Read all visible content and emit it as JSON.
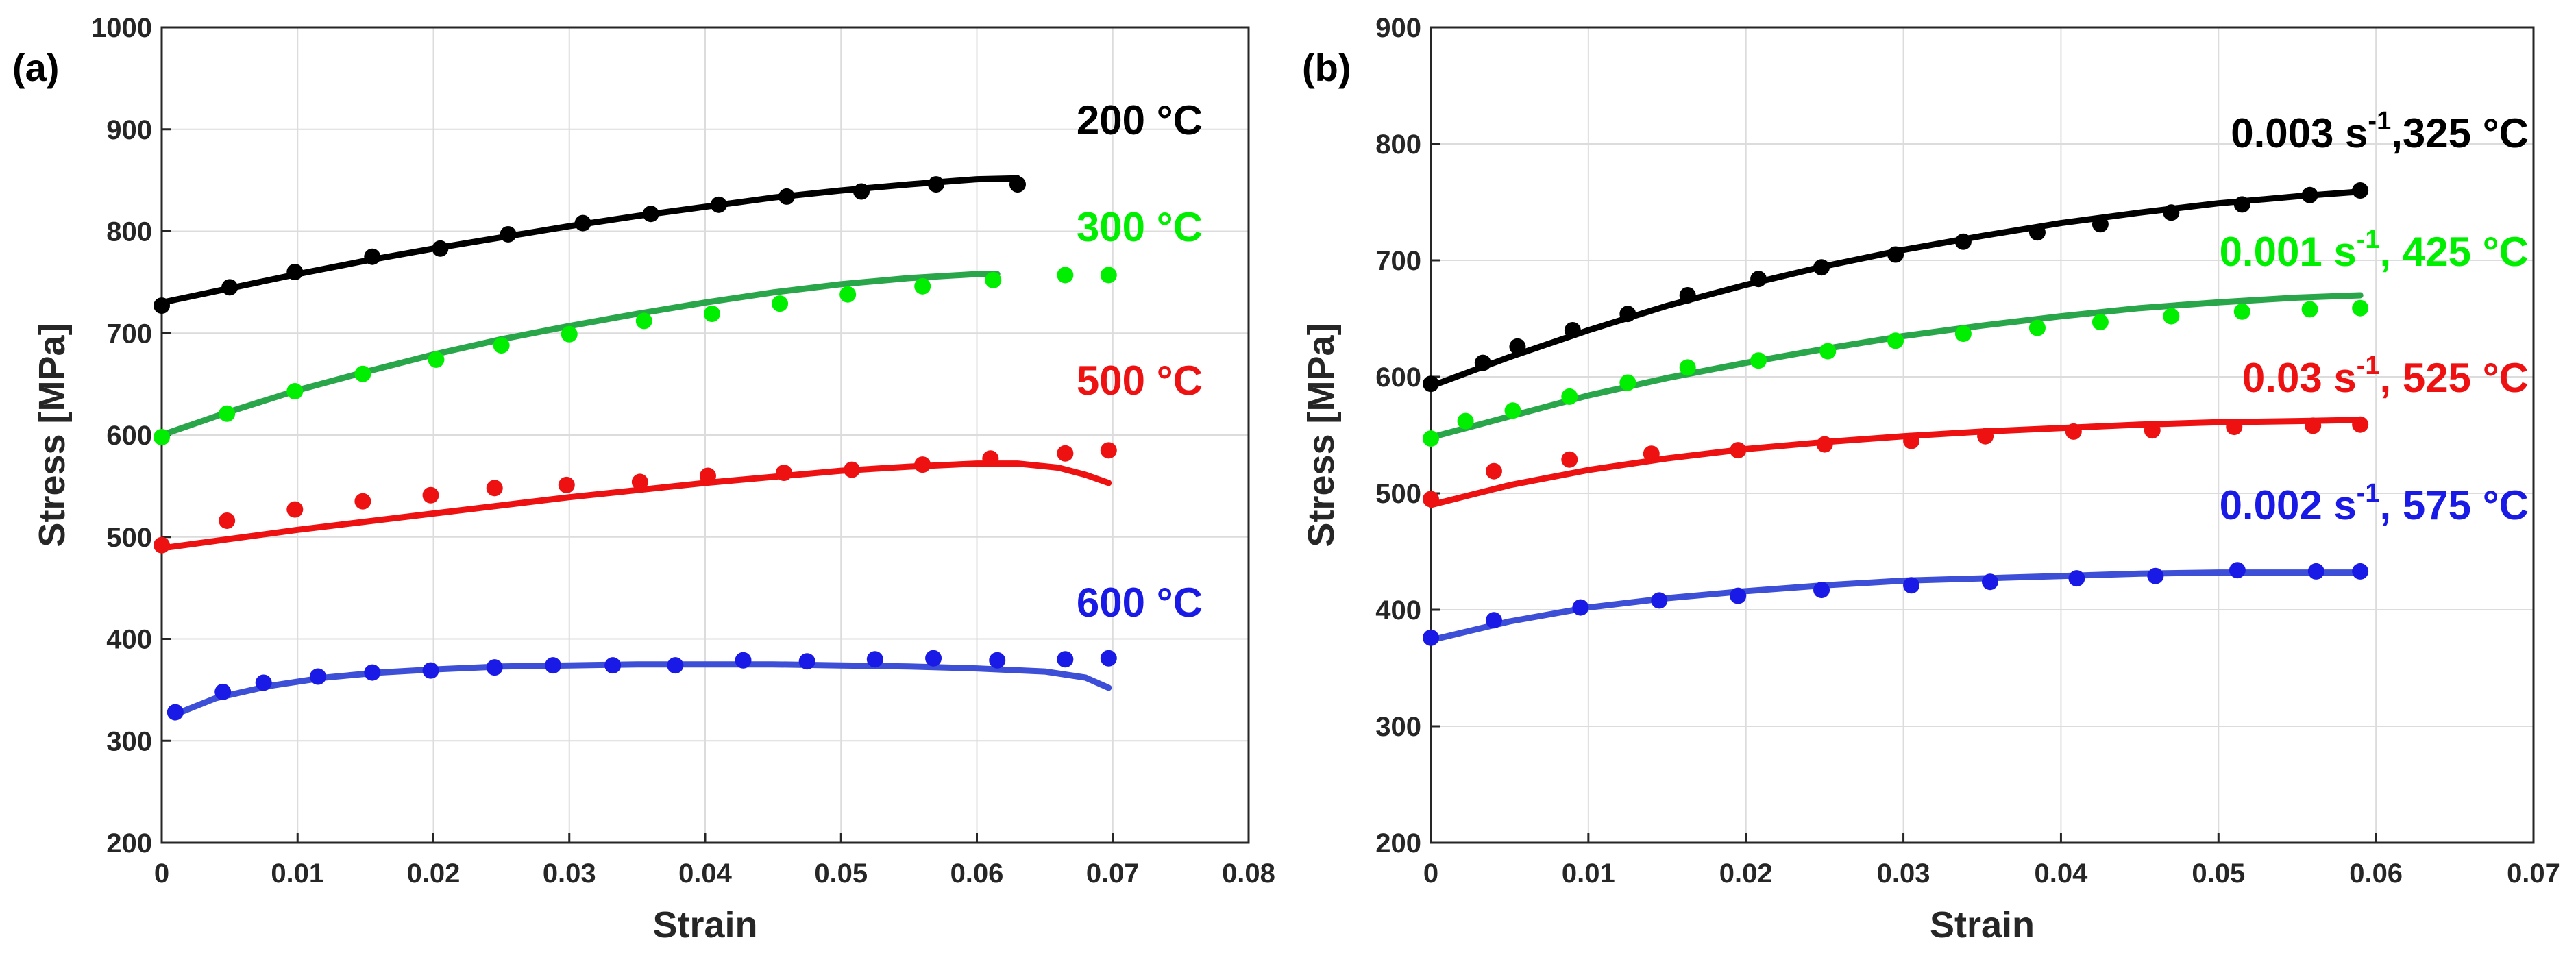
{
  "chart_data": [
    {
      "type": "line",
      "panel_label": "(a)",
      "xlabel": "Strain",
      "ylabel": "Stress [MPa]",
      "xlim": [
        0,
        0.08
      ],
      "ylim": [
        200,
        1000
      ],
      "xticks": [
        "0",
        "0.01",
        "0.02",
        "0.03",
        "0.04",
        "0.05",
        "0.06",
        "0.07",
        "0.08"
      ],
      "yticks": [
        "200",
        "300",
        "400",
        "500",
        "600",
        "700",
        "800",
        "900",
        "1000"
      ],
      "grid": true,
      "series": [
        {
          "name": "200 °C",
          "label": {
            "main": "200 °C",
            "sup": "",
            "rest": ""
          },
          "color": "#000000",
          "fit_color": "#000000",
          "fit": [
            [
              0,
              730
            ],
            [
              0.005,
              744
            ],
            [
              0.01,
              758
            ],
            [
              0.015,
              771
            ],
            [
              0.02,
              783
            ],
            [
              0.025,
              794
            ],
            [
              0.03,
              805
            ],
            [
              0.035,
              815
            ],
            [
              0.04,
              824
            ],
            [
              0.045,
              833
            ],
            [
              0.05,
              840
            ],
            [
              0.055,
              846
            ],
            [
              0.06,
              851
            ],
            [
              0.063,
              852
            ]
          ],
          "points": [
            [
              0,
              727
            ],
            [
              0.005,
              745
            ],
            [
              0.0098,
              760
            ],
            [
              0.0155,
              775
            ],
            [
              0.0205,
              783
            ],
            [
              0.0255,
              797
            ],
            [
              0.031,
              808
            ],
            [
              0.036,
              817
            ],
            [
              0.041,
              826
            ],
            [
              0.046,
              834
            ],
            [
              0.0515,
              839
            ],
            [
              0.057,
              846
            ],
            [
              0.063,
              846
            ]
          ]
        },
        {
          "name": "300 °C",
          "label": {
            "main": "300 °C",
            "sup": "",
            "rest": ""
          },
          "color": "#00ee00",
          "fit_color": "#2aa64a",
          "fit": [
            [
              0,
              600
            ],
            [
              0.005,
              623
            ],
            [
              0.01,
              644
            ],
            [
              0.015,
              662
            ],
            [
              0.02,
              679
            ],
            [
              0.025,
              694
            ],
            [
              0.03,
              707
            ],
            [
              0.035,
              719
            ],
            [
              0.04,
              730
            ],
            [
              0.045,
              740
            ],
            [
              0.05,
              748
            ],
            [
              0.055,
              754
            ],
            [
              0.06,
              758
            ],
            [
              0.0615,
              758
            ]
          ],
          "points": [
            [
              0,
              598
            ],
            [
              0.0048,
              621
            ],
            [
              0.0098,
              643
            ],
            [
              0.0148,
              660
            ],
            [
              0.0202,
              674
            ],
            [
              0.025,
              688
            ],
            [
              0.03,
              699
            ],
            [
              0.0355,
              712
            ],
            [
              0.0405,
              719
            ],
            [
              0.0455,
              729
            ],
            [
              0.0505,
              738
            ],
            [
              0.056,
              746
            ],
            [
              0.0612,
              752
            ],
            [
              0.0665,
              757
            ],
            [
              0.0697,
              757
            ]
          ]
        },
        {
          "name": "500 °C",
          "label": {
            "main": "500 °C",
            "sup": "",
            "rest": ""
          },
          "color": "#ee1111",
          "fit_color": "#ee1111",
          "fit": [
            [
              0,
              489
            ],
            [
              0.005,
              498
            ],
            [
              0.01,
              507
            ],
            [
              0.015,
              515
            ],
            [
              0.02,
              523
            ],
            [
              0.025,
              531
            ],
            [
              0.03,
              539
            ],
            [
              0.035,
              546
            ],
            [
              0.04,
              553
            ],
            [
              0.045,
              559
            ],
            [
              0.05,
              565
            ],
            [
              0.055,
              569
            ],
            [
              0.06,
              572
            ],
            [
              0.063,
              572
            ],
            [
              0.066,
              568
            ],
            [
              0.068,
              561
            ],
            [
              0.0697,
              553
            ]
          ],
          "points": [
            [
              0,
              492
            ],
            [
              0.0048,
              516
            ],
            [
              0.0098,
              527
            ],
            [
              0.0148,
              535
            ],
            [
              0.0198,
              541
            ],
            [
              0.0245,
              548
            ],
            [
              0.0298,
              551
            ],
            [
              0.0352,
              554
            ],
            [
              0.0402,
              560
            ],
            [
              0.0458,
              563
            ],
            [
              0.0508,
              566
            ],
            [
              0.056,
              571
            ],
            [
              0.061,
              577
            ],
            [
              0.0665,
              582
            ],
            [
              0.0697,
              585
            ]
          ]
        },
        {
          "name": "600 °C",
          "label": {
            "main": "600 °C",
            "sup": "",
            "rest": ""
          },
          "color": "#1a1ae6",
          "fit_color": "#3d4fd6",
          "fit": [
            [
              0.001,
              326
            ],
            [
              0.004,
              342
            ],
            [
              0.008,
              354
            ],
            [
              0.012,
              362
            ],
            [
              0.016,
              367
            ],
            [
              0.02,
              370
            ],
            [
              0.025,
              373
            ],
            [
              0.03,
              374
            ],
            [
              0.035,
              375
            ],
            [
              0.04,
              375
            ],
            [
              0.045,
              375
            ],
            [
              0.05,
              374
            ],
            [
              0.055,
              373
            ],
            [
              0.06,
              371
            ],
            [
              0.065,
              368
            ],
            [
              0.068,
              362
            ],
            [
              0.0697,
              352
            ]
          ],
          "points": [
            [
              0.001,
              328
            ],
            [
              0.0045,
              348
            ],
            [
              0.0075,
              357
            ],
            [
              0.0115,
              363
            ],
            [
              0.0155,
              367
            ],
            [
              0.0198,
              369
            ],
            [
              0.0245,
              372
            ],
            [
              0.0288,
              374
            ],
            [
              0.0332,
              374
            ],
            [
              0.0378,
              374
            ],
            [
              0.0428,
              379
            ],
            [
              0.0475,
              378
            ],
            [
              0.0525,
              380
            ],
            [
              0.0568,
              381
            ],
            [
              0.0615,
              379
            ],
            [
              0.0665,
              380
            ],
            [
              0.0697,
              381
            ]
          ]
        }
      ]
    },
    {
      "type": "line",
      "panel_label": "(b)",
      "xlabel": "Strain",
      "ylabel": "Stress [MPa]",
      "xlim": [
        0,
        0.07
      ],
      "ylim": [
        200,
        900
      ],
      "xticks": [
        "0",
        "0.01",
        "0.02",
        "0.03",
        "0.04",
        "0.05",
        "0.06",
        "0.07"
      ],
      "yticks": [
        "200",
        "300",
        "400",
        "500",
        "600",
        "700",
        "800",
        "900"
      ],
      "grid": true,
      "series": [
        {
          "name": "0.003 s-1, 325 °C",
          "label": {
            "main": "0.003 s",
            "sup": "-1",
            "rest": ",325 °C"
          },
          "color": "#000000",
          "fit_color": "#000000",
          "fit": [
            [
              0,
              592
            ],
            [
              0.005,
              617
            ],
            [
              0.01,
              640
            ],
            [
              0.015,
              661
            ],
            [
              0.02,
              679
            ],
            [
              0.025,
              695
            ],
            [
              0.03,
              709
            ],
            [
              0.035,
              721
            ],
            [
              0.04,
              732
            ],
            [
              0.045,
              741
            ],
            [
              0.05,
              749
            ],
            [
              0.055,
              755
            ],
            [
              0.059,
              759
            ]
          ],
          "points": [
            [
              0,
              594
            ],
            [
              0.0033,
              612
            ],
            [
              0.0055,
              626
            ],
            [
              0.009,
              640
            ],
            [
              0.0125,
              654
            ],
            [
              0.0163,
              670
            ],
            [
              0.0208,
              684
            ],
            [
              0.0248,
              694
            ],
            [
              0.0295,
              705
            ],
            [
              0.0338,
              716
            ],
            [
              0.0385,
              724
            ],
            [
              0.0425,
              731
            ],
            [
              0.047,
              741
            ],
            [
              0.0515,
              748
            ],
            [
              0.0558,
              756
            ],
            [
              0.059,
              760
            ]
          ]
        },
        {
          "name": "0.001 s-1, 425 °C",
          "label": {
            "main": "0.001 s",
            "sup": "-1",
            "rest": ", 425 °C"
          },
          "color": "#00ee00",
          "fit_color": "#2aa64a",
          "fit": [
            [
              0,
              548
            ],
            [
              0.005,
              566
            ],
            [
              0.01,
              584
            ],
            [
              0.015,
              599
            ],
            [
              0.02,
              612
            ],
            [
              0.025,
              624
            ],
            [
              0.03,
              635
            ],
            [
              0.035,
              644
            ],
            [
              0.04,
              652
            ],
            [
              0.045,
              659
            ],
            [
              0.05,
              664
            ],
            [
              0.055,
              668
            ],
            [
              0.059,
              670
            ]
          ],
          "points": [
            [
              0,
              547
            ],
            [
              0.0022,
              562
            ],
            [
              0.0052,
              571
            ],
            [
              0.0088,
              583
            ],
            [
              0.0125,
              595
            ],
            [
              0.0163,
              608
            ],
            [
              0.0208,
              614
            ],
            [
              0.0252,
              622
            ],
            [
              0.0295,
              631
            ],
            [
              0.0338,
              637
            ],
            [
              0.0385,
              642
            ],
            [
              0.0425,
              647
            ],
            [
              0.047,
              652
            ],
            [
              0.0515,
              656
            ],
            [
              0.0558,
              658
            ],
            [
              0.059,
              659
            ]
          ]
        },
        {
          "name": "0.03 s-1, 525 °C",
          "label": {
            "main": "0.03 s",
            "sup": "-1",
            "rest": ", 525 °C"
          },
          "color": "#ee1111",
          "fit_color": "#ee1111",
          "fit": [
            [
              0,
              490
            ],
            [
              0.005,
              507
            ],
            [
              0.01,
              520
            ],
            [
              0.015,
              530
            ],
            [
              0.02,
              538
            ],
            [
              0.025,
              544
            ],
            [
              0.03,
              549
            ],
            [
              0.035,
              553
            ],
            [
              0.04,
              556
            ],
            [
              0.045,
              559
            ],
            [
              0.05,
              561
            ],
            [
              0.055,
              562
            ],
            [
              0.059,
              563
            ]
          ],
          "points": [
            [
              0,
              495
            ],
            [
              0.004,
              519
            ],
            [
              0.0088,
              529
            ],
            [
              0.014,
              534
            ],
            [
              0.0195,
              537
            ],
            [
              0.025,
              542
            ],
            [
              0.0305,
              545
            ],
            [
              0.0352,
              549
            ],
            [
              0.0408,
              553
            ],
            [
              0.0458,
              554
            ],
            [
              0.051,
              557
            ],
            [
              0.056,
              558
            ],
            [
              0.059,
              559
            ]
          ]
        },
        {
          "name": "0.002 s-1, 575 °C",
          "label": {
            "main": "0.002 s",
            "sup": "-1",
            "rest": ", 575 °C"
          },
          "color": "#1a1ae6",
          "fit_color": "#3d4fd6",
          "fit": [
            [
              0,
              374
            ],
            [
              0.005,
              390
            ],
            [
              0.01,
              402
            ],
            [
              0.015,
              410
            ],
            [
              0.02,
              416
            ],
            [
              0.025,
              421
            ],
            [
              0.03,
              425
            ],
            [
              0.035,
              427
            ],
            [
              0.04,
              429
            ],
            [
              0.045,
              431
            ],
            [
              0.05,
              432
            ],
            [
              0.055,
              432
            ],
            [
              0.059,
              432
            ]
          ],
          "points": [
            [
              0,
              376
            ],
            [
              0.004,
              391
            ],
            [
              0.0095,
              402
            ],
            [
              0.0145,
              408
            ],
            [
              0.0195,
              412
            ],
            [
              0.0248,
              417
            ],
            [
              0.0305,
              421
            ],
            [
              0.0355,
              424
            ],
            [
              0.041,
              427
            ],
            [
              0.046,
              429
            ],
            [
              0.0512,
              434
            ],
            [
              0.0562,
              433
            ],
            [
              0.059,
              433
            ]
          ]
        }
      ]
    }
  ]
}
